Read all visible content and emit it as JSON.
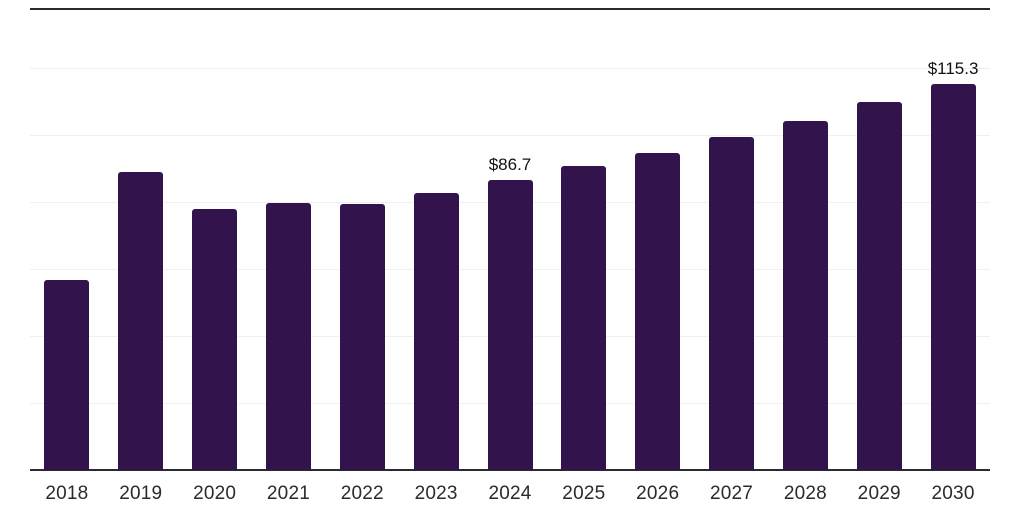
{
  "chart_data": {
    "type": "bar",
    "title": "",
    "xlabel": "",
    "ylabel": "",
    "categories": [
      "2018",
      "2019",
      "2020",
      "2021",
      "2022",
      "2023",
      "2024",
      "2025",
      "2026",
      "2027",
      "2028",
      "2029",
      "2030"
    ],
    "values": [
      56.8,
      89.0,
      77.9,
      79.7,
      79.3,
      82.8,
      86.7,
      90.7,
      94.7,
      99.3,
      104.2,
      109.8,
      115.3
    ],
    "annotations": [
      {
        "category": "2024",
        "index": 6,
        "text": "$86.7"
      },
      {
        "category": "2030",
        "index": 12,
        "text": "$115.3"
      }
    ],
    "ylim": [
      0,
      140
    ],
    "ytick_step": 20,
    "grid": true,
    "legend": false,
    "colors": {
      "bar": "#33134C",
      "axis_line": "#2a2a32",
      "grid_line": "#f0f0f4",
      "background": "#ffffff",
      "tick_text": "#2b2b2b",
      "annotation_text": "#111111"
    }
  }
}
